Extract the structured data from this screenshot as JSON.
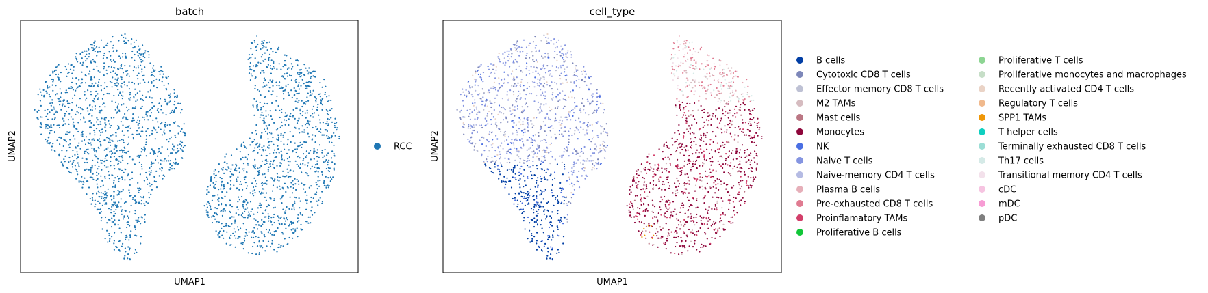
{
  "chart_data": [
    {
      "type": "scatter",
      "title": "batch",
      "xlabel": "UMAP1",
      "ylabel": "UMAP2",
      "grid": false,
      "legend_placement": "right",
      "series": [
        {
          "name": "RCC",
          "color": "#1f77b4"
        }
      ]
    },
    {
      "type": "scatter",
      "title": "cell_type",
      "xlabel": "UMAP1",
      "ylabel": "UMAP2",
      "grid": false,
      "legend_placement": "right",
      "legend_columns": 2,
      "series": [
        {
          "name": "B cells",
          "color": "#023fa5"
        },
        {
          "name": "Cytotoxic CD8 T cells",
          "color": "#7d87b9"
        },
        {
          "name": "Effector memory CD8 T cells",
          "color": "#bec1d4"
        },
        {
          "name": "M2 TAMs",
          "color": "#d6bcc0"
        },
        {
          "name": "Mast cells",
          "color": "#bb7784"
        },
        {
          "name": "Monocytes",
          "color": "#8e063b"
        },
        {
          "name": "NK",
          "color": "#4a6fe3"
        },
        {
          "name": "Naive T cells",
          "color": "#8595e1"
        },
        {
          "name": "Naive-memory CD4 T cells",
          "color": "#b5bbe3"
        },
        {
          "name": "Plasma B cells",
          "color": "#e6afb9"
        },
        {
          "name": "Pre-exhausted CD8 T cells",
          "color": "#e07b91"
        },
        {
          "name": "Proinflamatory TAMs",
          "color": "#d33f6a"
        },
        {
          "name": "Proliferative B cells",
          "color": "#11c638"
        },
        {
          "name": "Proliferative T cells",
          "color": "#8dd593"
        },
        {
          "name": "Proliferative monocytes and macrophages",
          "color": "#c6dec7"
        },
        {
          "name": "Recently activated CD4 T cells",
          "color": "#ead3c6"
        },
        {
          "name": "Regulatory T cells",
          "color": "#f0b98d"
        },
        {
          "name": "SPP1 TAMs",
          "color": "#ef9708"
        },
        {
          "name": "T helper cells",
          "color": "#0fcfc0"
        },
        {
          "name": "Terminally exhausted CD8 T cells",
          "color": "#9cded6"
        },
        {
          "name": "Th17 cells",
          "color": "#d5eae7"
        },
        {
          "name": "Transitional memory CD4 T cells",
          "color": "#f3e1eb"
        },
        {
          "name": "cDC",
          "color": "#f6c4e1"
        },
        {
          "name": "mDC",
          "color": "#f79cd4"
        },
        {
          "name": "pDC",
          "color": "#7f7f7f"
        }
      ]
    }
  ]
}
